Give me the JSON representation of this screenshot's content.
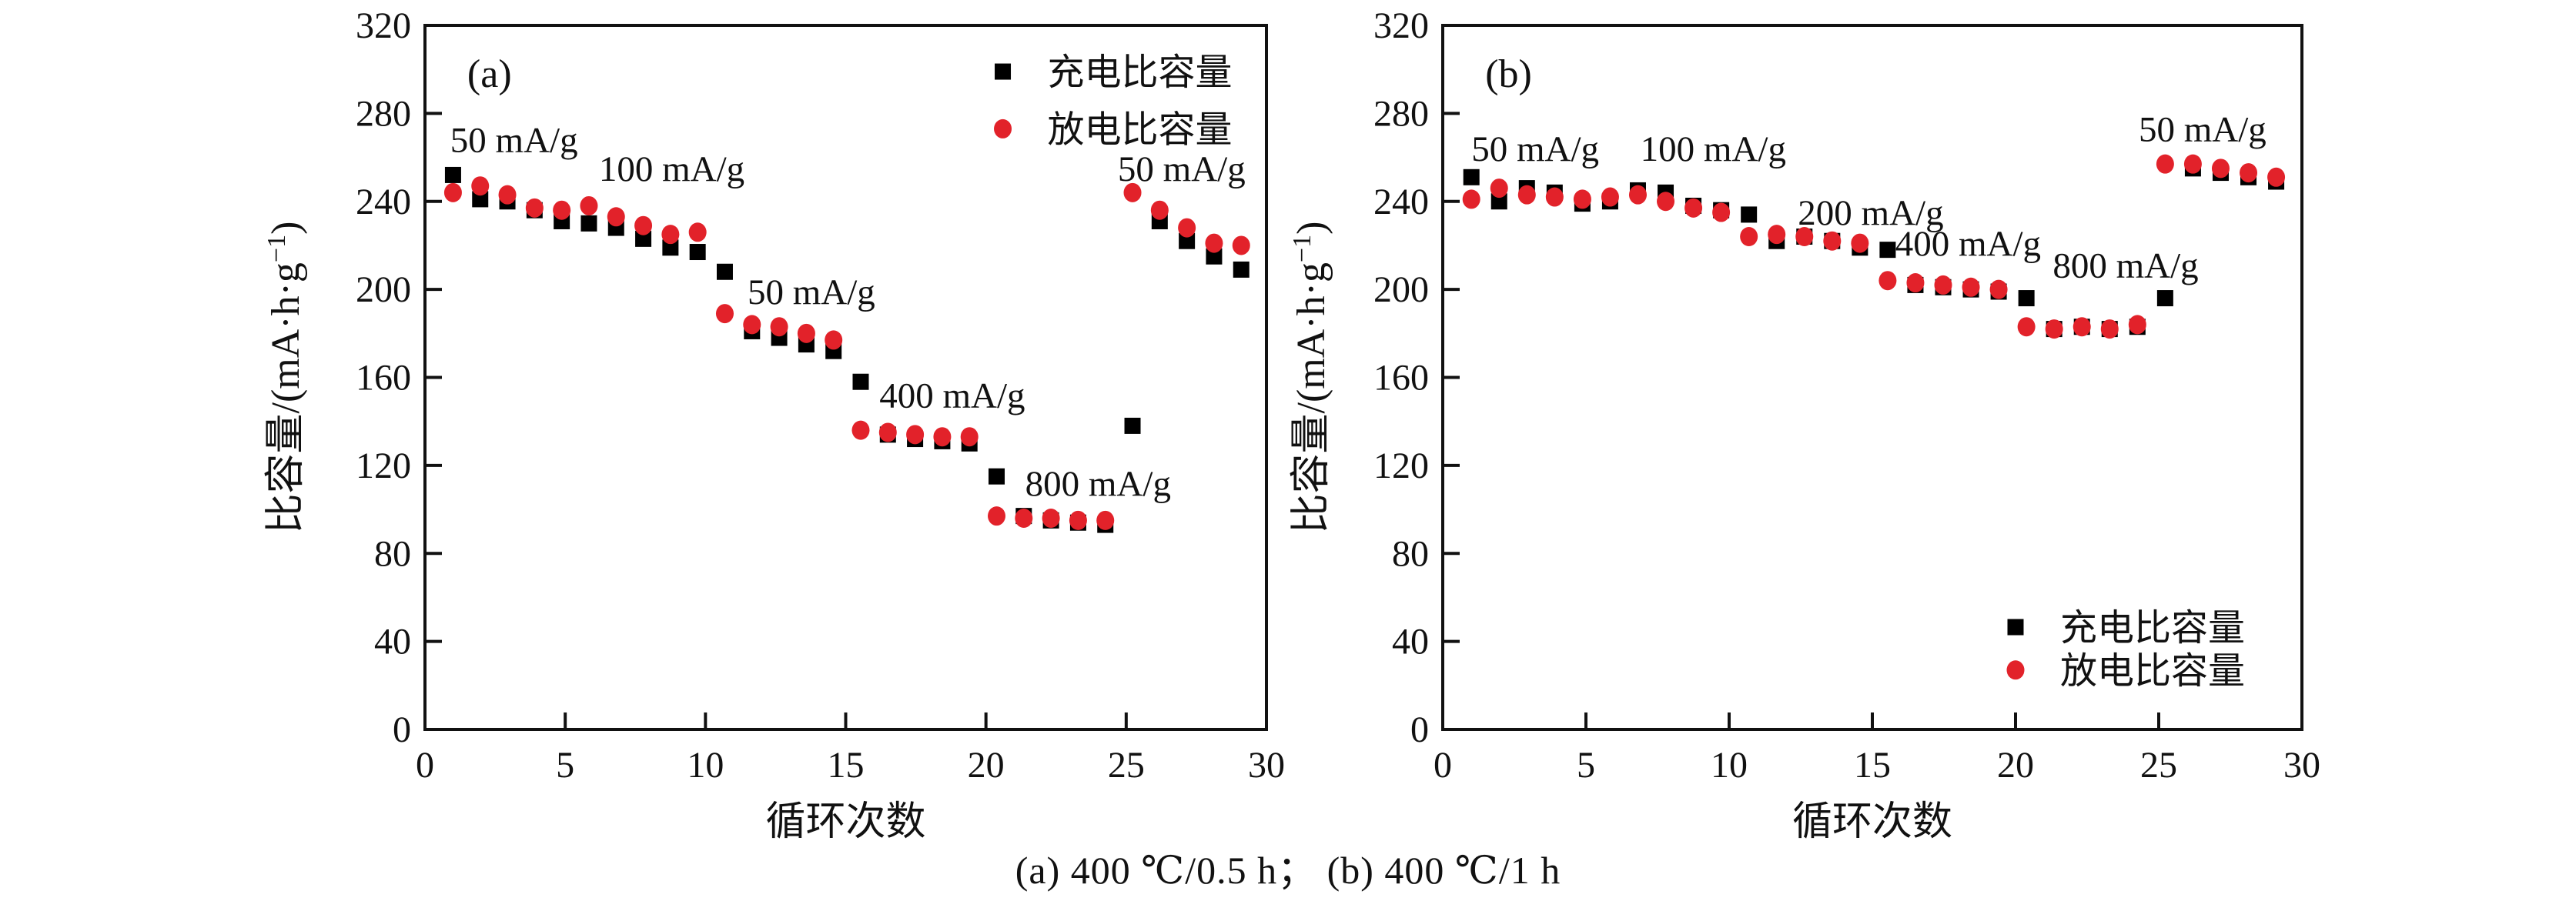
{
  "figure": {
    "caption": "(a) 400 ℃/0.5 h； (b) 400 ℃/1 h",
    "colors": {
      "charge": "#000000",
      "discharge": "#e2222a",
      "axis": "#111111"
    },
    "series_labels": {
      "charge": "充电比容量",
      "discharge": "放电比容量"
    }
  },
  "chart_data": [
    {
      "type": "scatter",
      "panel_label": "(a)",
      "xlabel": "循环次数",
      "ylabel": "比容量/(mA·h·g⁻¹)",
      "ylabel_parts": {
        "main": "比容量/(mA·h·g",
        "sup": "−1",
        "close": ")"
      },
      "xlim": [
        0,
        30
      ],
      "ylim": [
        0,
        320
      ],
      "xticks": [
        0,
        5,
        10,
        15,
        20,
        25,
        30
      ],
      "yticks": [
        0,
        40,
        80,
        120,
        160,
        200,
        240,
        280,
        320
      ],
      "grid": false,
      "legend_position": "top-right",
      "legend": [
        {
          "series": "charge",
          "label": "充电比容量",
          "marker": "square",
          "color": "#000000"
        },
        {
          "series": "discharge",
          "label": "放电比容量",
          "marker": "circle",
          "color": "#e2222a"
        }
      ],
      "annotations": [
        {
          "text": "50 mA/g",
          "x": 0.9,
          "y": 268
        },
        {
          "text": "100 mA/g",
          "x": 6.2,
          "y": 255
        },
        {
          "text": "50 mA/g",
          "x": 11.5,
          "y": 199
        },
        {
          "text": "400 mA/g",
          "x": 16.2,
          "y": 152
        },
        {
          "text": "800 mA/g",
          "x": 21.4,
          "y": 112
        },
        {
          "text": "50 mA/g",
          "x": 24.7,
          "y": 255
        }
      ],
      "series": [
        {
          "name": "充电比容量",
          "key": "charge",
          "marker": "square",
          "color": "#000000",
          "points": [
            [
              1,
              252
            ],
            [
              2,
              241
            ],
            [
              3,
              240
            ],
            [
              4,
              236
            ],
            [
              5,
              231
            ],
            [
              6,
              230
            ],
            [
              7,
              228
            ],
            [
              8,
              223
            ],
            [
              9,
              219
            ],
            [
              10,
              217
            ],
            [
              11,
              208
            ],
            [
              12,
              181
            ],
            [
              13,
              178
            ],
            [
              14,
              175
            ],
            [
              15,
              172
            ],
            [
              16,
              158
            ],
            [
              17,
              134
            ],
            [
              18,
              132
            ],
            [
              19,
              131
            ],
            [
              20,
              130
            ],
            [
              21,
              115
            ],
            [
              22,
              97
            ],
            [
              23,
              95
            ],
            [
              24,
              94
            ],
            [
              25,
              93
            ],
            [
              26,
              138
            ],
            [
              27,
              231
            ],
            [
              28,
              222
            ],
            [
              29,
              215
            ],
            [
              30,
              209
            ]
          ]
        },
        {
          "name": "放电比容量",
          "key": "discharge",
          "marker": "circle",
          "color": "#e2222a",
          "points": [
            [
              1,
              244
            ],
            [
              2,
              247
            ],
            [
              3,
              243
            ],
            [
              4,
              237
            ],
            [
              5,
              236
            ],
            [
              6,
              238
            ],
            [
              7,
              233
            ],
            [
              8,
              229
            ],
            [
              9,
              225
            ],
            [
              10,
              226
            ],
            [
              11,
              189
            ],
            [
              12,
              184
            ],
            [
              13,
              183
            ],
            [
              14,
              180
            ],
            [
              15,
              177
            ],
            [
              16,
              136
            ],
            [
              17,
              135
            ],
            [
              18,
              134
            ],
            [
              19,
              133
            ],
            [
              20,
              133
            ],
            [
              21,
              97
            ],
            [
              22,
              96
            ],
            [
              23,
              96
            ],
            [
              24,
              95
            ],
            [
              25,
              95
            ],
            [
              26,
              244
            ],
            [
              27,
              236
            ],
            [
              28,
              228
            ],
            [
              29,
              221
            ],
            [
              30,
              220
            ]
          ]
        }
      ]
    },
    {
      "type": "scatter",
      "panel_label": "(b)",
      "xlabel": "循环次数",
      "ylabel": "比容量/(mA·h·g⁻¹)",
      "ylabel_parts": {
        "main": "比容量/(mA·h·g",
        "sup": "−1",
        "close": ")"
      },
      "xlim": [
        0,
        30
      ],
      "ylim": [
        0,
        320
      ],
      "xticks": [
        0,
        5,
        10,
        15,
        20,
        25,
        30
      ],
      "yticks": [
        0,
        40,
        80,
        120,
        160,
        200,
        240,
        280,
        320
      ],
      "grid": false,
      "legend_position": "bottom-right",
      "legend": [
        {
          "series": "charge",
          "label": "充电比容量",
          "marker": "square",
          "color": "#000000"
        },
        {
          "series": "discharge",
          "label": "放电比容量",
          "marker": "circle",
          "color": "#e2222a"
        }
      ],
      "annotations": [
        {
          "text": "50 mA/g",
          "x": 1.0,
          "y": 264
        },
        {
          "text": "100 mA/g",
          "x": 6.9,
          "y": 264
        },
        {
          "text": "200 mA/g",
          "x": 12.4,
          "y": 235
        },
        {
          "text": "400 mA/g",
          "x": 15.8,
          "y": 221
        },
        {
          "text": "800 mA/g",
          "x": 21.3,
          "y": 211
        },
        {
          "text": "50 mA/g",
          "x": 24.3,
          "y": 273
        }
      ],
      "series": [
        {
          "name": "充电比容量",
          "key": "charge",
          "marker": "square",
          "color": "#000000",
          "points": [
            [
              1,
              251
            ],
            [
              2,
              240
            ],
            [
              3,
              246
            ],
            [
              4,
              244
            ],
            [
              5,
              239
            ],
            [
              6,
              240
            ],
            [
              7,
              245
            ],
            [
              8,
              244
            ],
            [
              9,
              238
            ],
            [
              10,
              236
            ],
            [
              11,
              234
            ],
            [
              12,
              222
            ],
            [
              13,
              224
            ],
            [
              14,
              222
            ],
            [
              15,
              219
            ],
            [
              16,
              218
            ],
            [
              17,
              202
            ],
            [
              18,
              201
            ],
            [
              19,
              200
            ],
            [
              20,
              199
            ],
            [
              21,
              196
            ],
            [
              22,
              182
            ],
            [
              23,
              183
            ],
            [
              24,
              182
            ],
            [
              25,
              183
            ],
            [
              26,
              196
            ],
            [
              27,
              255
            ],
            [
              28,
              253
            ],
            [
              29,
              251
            ],
            [
              30,
              249
            ]
          ]
        },
        {
          "name": "放电比容量",
          "key": "discharge",
          "marker": "circle",
          "color": "#e2222a",
          "points": [
            [
              1,
              241
            ],
            [
              2,
              246
            ],
            [
              3,
              243
            ],
            [
              4,
              242
            ],
            [
              5,
              241
            ],
            [
              6,
              242
            ],
            [
              7,
              243
            ],
            [
              8,
              240
            ],
            [
              9,
              237
            ],
            [
              10,
              235
            ],
            [
              11,
              224
            ],
            [
              12,
              225
            ],
            [
              13,
              224
            ],
            [
              14,
              222
            ],
            [
              15,
              221
            ],
            [
              16,
              204
            ],
            [
              17,
              203
            ],
            [
              18,
              202
            ],
            [
              19,
              201
            ],
            [
              20,
              200
            ],
            [
              21,
              183
            ],
            [
              22,
              182
            ],
            [
              23,
              183
            ],
            [
              24,
              182
            ],
            [
              25,
              184
            ],
            [
              26,
              257
            ],
            [
              27,
              257
            ],
            [
              28,
              255
            ],
            [
              29,
              253
            ],
            [
              30,
              251
            ]
          ]
        }
      ]
    }
  ]
}
